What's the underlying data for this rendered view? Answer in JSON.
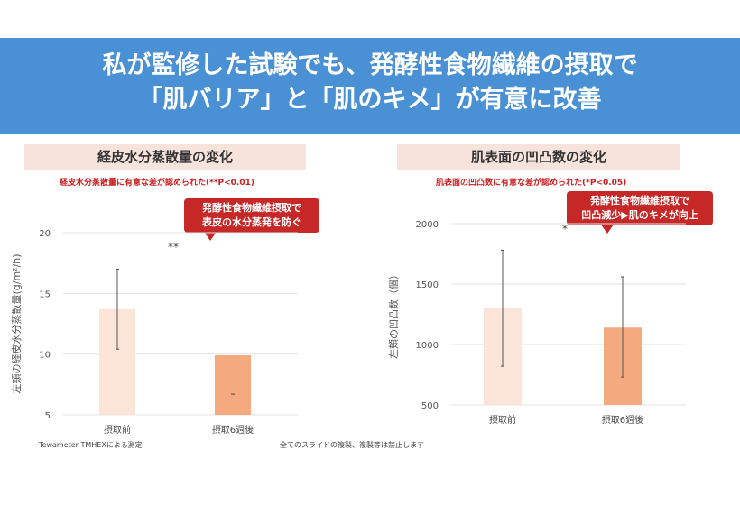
{
  "banner": {
    "line1": "私が監修した試験でも、発酵性食物繊維の摂取で",
    "line2": "「肌バリア」と「肌のキメ」が有意に改善"
  },
  "footer": {
    "method": "Tewameter TMHEXによる測定",
    "copyright": "全てのスライドの複製、複製等は禁止します"
  },
  "colors": {
    "before": "#fbe4d8",
    "after": "#f4a97f",
    "banner": "#4a90d4",
    "callout": "#c62828"
  },
  "chart_data": [
    {
      "type": "bar",
      "title": "経皮水分蒸散量の変化",
      "note": "経皮水分蒸散量に有意な差が認められた(**P<0.01)",
      "callout": [
        "発酵性食物繊維摂取で",
        "表皮の水分蒸発を防ぐ"
      ],
      "ylabel": "左頬の経皮水分蒸散量(g/m²/h)",
      "ylim": [
        5,
        20
      ],
      "yticks": [
        5,
        10,
        15,
        20
      ],
      "categories": [
        "摂取前",
        "摂取6週後"
      ],
      "values": [
        13.7,
        9.9
      ],
      "error_low": [
        10.4,
        6.7
      ],
      "error_high": [
        17.0,
        6.7
      ],
      "significance": "**"
    },
    {
      "type": "bar",
      "title": "肌表面の凹凸数の変化",
      "note": "肌表面の凹凸数に有意な差が認められた(*P<0.05)",
      "callout": [
        "発酵性食物繊維摂取で",
        "凹凸減少▶肌のキメが向上"
      ],
      "ylabel": "左頬の凹凸数（個）",
      "ylim": [
        500,
        2000
      ],
      "yticks": [
        500,
        1000,
        1500,
        2000
      ],
      "categories": [
        "摂取前",
        "摂取6週後"
      ],
      "values": [
        1300,
        1140
      ],
      "error_low": [
        820,
        730
      ],
      "error_high": [
        1780,
        1560
      ],
      "significance": "*"
    }
  ]
}
